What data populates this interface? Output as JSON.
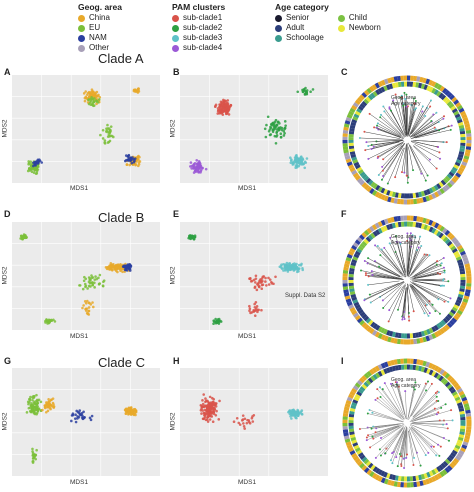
{
  "legends": {
    "geo": {
      "title": "Geog. area",
      "items": [
        {
          "label": "China",
          "color": "#e8a92a"
        },
        {
          "label": "EU",
          "color": "#7bbf3a"
        },
        {
          "label": "NAM",
          "color": "#2b3fa0"
        },
        {
          "label": "Other",
          "color": "#a8a0b8"
        }
      ]
    },
    "pam": {
      "title": "PAM clusters",
      "items": [
        {
          "label": "sub-clade1",
          "color": "#d9534a"
        },
        {
          "label": "sub-clade2",
          "color": "#2ea043"
        },
        {
          "label": "sub-clade3",
          "color": "#5fc2c8"
        },
        {
          "label": "sub-clade4",
          "color": "#9b59d6"
        }
      ]
    },
    "age": {
      "title": "Age category",
      "items": [
        {
          "label": "Senior",
          "color": "#1a1a2e"
        },
        {
          "label": "Adult",
          "color": "#2c3e7a"
        },
        {
          "label": "Schoolage",
          "color": "#3a9c8f"
        },
        {
          "label": "Child",
          "color": "#7cc242"
        },
        {
          "label": "Newborn",
          "color": "#e8e83a"
        }
      ]
    }
  },
  "rows": [
    {
      "clade": "Clade A",
      "labels": [
        "A",
        "B",
        "C"
      ]
    },
    {
      "clade": "Clade B",
      "labels": [
        "D",
        "E",
        "F"
      ]
    },
    {
      "clade": "Clade C",
      "labels": [
        "G",
        "H",
        "I"
      ]
    }
  ],
  "axes": {
    "x": "MDS1",
    "y": "MDS2"
  },
  "circle_labels": {
    "l1": "Geog. area",
    "l2": "Age category"
  },
  "suppl_note": "Suppl. Data S2"
}
